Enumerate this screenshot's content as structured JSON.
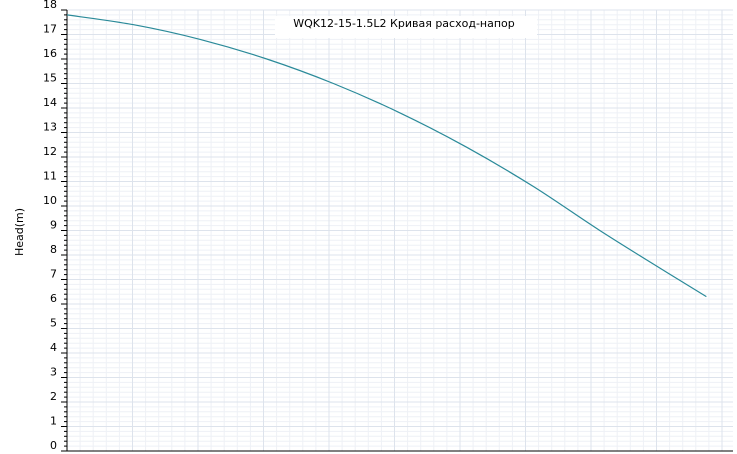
{
  "chart_data": {
    "type": "line",
    "title": "WQK12-15-1.5L2 Кривая расход-напор",
    "xlabel": "",
    "ylabel": "Head(m)",
    "ylim": [
      0,
      18
    ],
    "xlim": [
      0,
      1
    ],
    "grid": true,
    "y_ticks": [
      "0",
      "1",
      "2",
      "3",
      "4",
      "5",
      "6",
      "7",
      "8",
      "9",
      "10",
      "11",
      "12",
      "13",
      "14",
      "15",
      "16",
      "17",
      "18"
    ],
    "series": [
      {
        "color": "#2a8a99",
        "x": [
          0,
          0.1,
          0.2,
          0.3,
          0.4,
          0.5,
          0.6,
          0.7,
          0.8,
          0.9,
          0.96
        ],
        "y": [
          17.8,
          17.4,
          16.8,
          16.0,
          15.0,
          13.8,
          12.4,
          10.8,
          9.0,
          7.3,
          6.3
        ]
      }
    ]
  }
}
